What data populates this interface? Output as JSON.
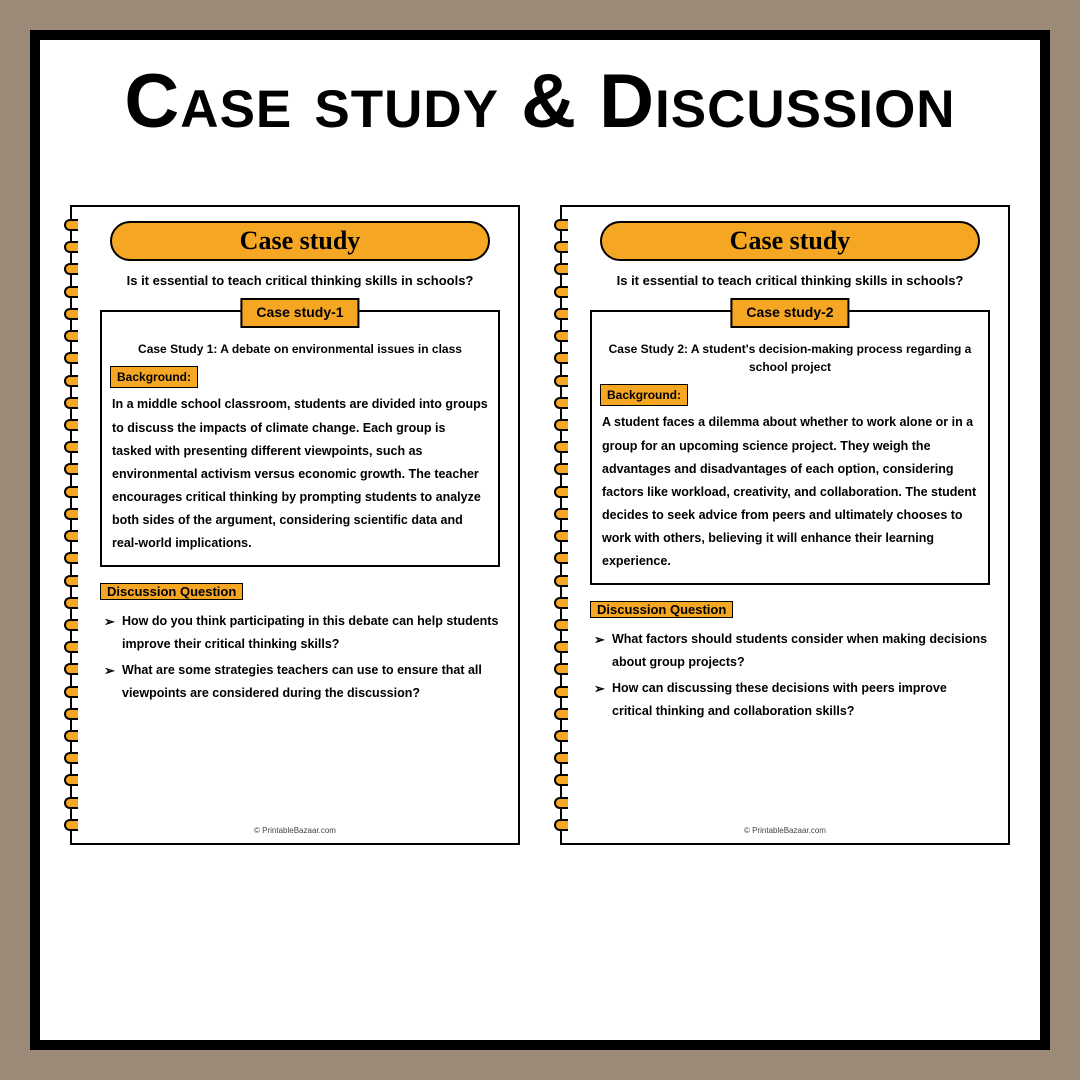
{
  "title": "Case study & Discussion",
  "colors": {
    "page_bg": "#9c8a78",
    "frame_bg": "#ffffff",
    "frame_border": "#000000",
    "accent": "#f5a623"
  },
  "worksheets": [
    {
      "header": "Case study",
      "subtitle": "Is it essential to teach critical thinking skills in schools?",
      "case_label": "Case study-1",
      "case_title": "Case Study 1: A debate on environmental issues in class",
      "background_label": "Background:",
      "background_text": "In a middle school classroom, students are divided into groups to discuss the impacts of climate change. Each group is tasked with presenting different viewpoints, such as environmental activism versus economic growth. The teacher encourages critical thinking by prompting students to analyze both sides of the argument, considering scientific data and real-world implications.",
      "dq_label": "Discussion Question",
      "questions": [
        "How do you think participating in this debate can help students improve their critical thinking skills?",
        "What are some strategies teachers can use to ensure that all viewpoints are considered during the discussion?"
      ],
      "footer": "© PrintableBazaar.com"
    },
    {
      "header": "Case study",
      "subtitle": "Is it essential to teach critical thinking skills in schools?",
      "case_label": "Case study-2",
      "case_title": "Case Study 2: A student's decision-making process regarding a school project",
      "background_label": "Background:",
      "background_text": "A student faces a dilemma about whether to work alone or in a group for an upcoming science project. They weigh the advantages and disadvantages of each option, considering factors like workload, creativity, and collaboration. The student decides to seek advice from peers and ultimately chooses to work with others, believing it will enhance their learning experience.",
      "dq_label": "Discussion Question",
      "questions": [
        "What factors should students consider when making decisions about group projects?",
        "How can discussing these decisions with peers improve critical thinking and collaboration skills?"
      ],
      "footer": "© PrintableBazaar.com"
    }
  ]
}
